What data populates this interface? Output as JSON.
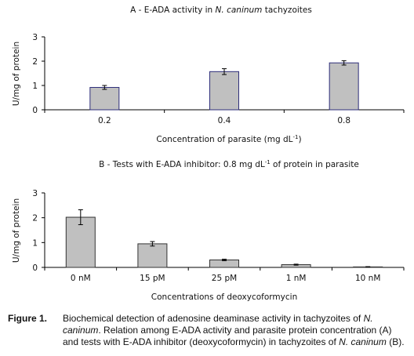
{
  "chart_data": [
    {
      "type": "bar",
      "title_prefix": "A - E-ADA activity in ",
      "title_italic": "N. caninum",
      "title_suffix": " tachyzoites",
      "categories": [
        "0.2",
        "0.4",
        "0.8"
      ],
      "values": [
        0.92,
        1.57,
        1.93
      ],
      "errors": [
        0.08,
        0.12,
        0.09
      ],
      "ylim": [
        0,
        3
      ],
      "yticks": [
        "0",
        "1",
        "2",
        "3"
      ],
      "ylabel": "U/mg of protein",
      "xlabel": "Concentration of parasite (mg dL",
      "xlabel_sup": "-1",
      "xlabel_end": ")",
      "bar_fill": "#c0c0c0",
      "bar_stroke": "#2e2e7a"
    },
    {
      "type": "bar",
      "title": "B - Tests with E-ADA inhibitor: 0.8 mg dL",
      "title_sup": "-1",
      "title_end": " of protein in parasite",
      "categories": [
        "0 nM",
        "15 pM",
        "25 pM",
        "1 nM",
        "10 nM"
      ],
      "values": [
        2.02,
        0.95,
        0.3,
        0.11,
        0.02
      ],
      "errors": [
        0.3,
        0.09,
        0.03,
        0.02,
        0.01
      ],
      "ylim": [
        0,
        3
      ],
      "yticks": [
        "0",
        "1",
        "2",
        "3"
      ],
      "ylabel": "U/mg of protein",
      "xlabel": "Concentrations of deoxycoformycin",
      "bar_fill": "#c0c0c0",
      "bar_stroke": "#333333"
    }
  ],
  "caption": {
    "label": "Figure 1.",
    "text_1": "Biochemical detection of adenosine deaminase activity in tachyzoites of ",
    "italic_1": "N. caninum",
    "text_2": ". Relation among E-ADA activity and parasite protein concentration (A) and tests with E-ADA inhibitor (deoxycoformycin) in tachyzoites of ",
    "italic_2": "N. caninum",
    "text_3": " (B)."
  }
}
